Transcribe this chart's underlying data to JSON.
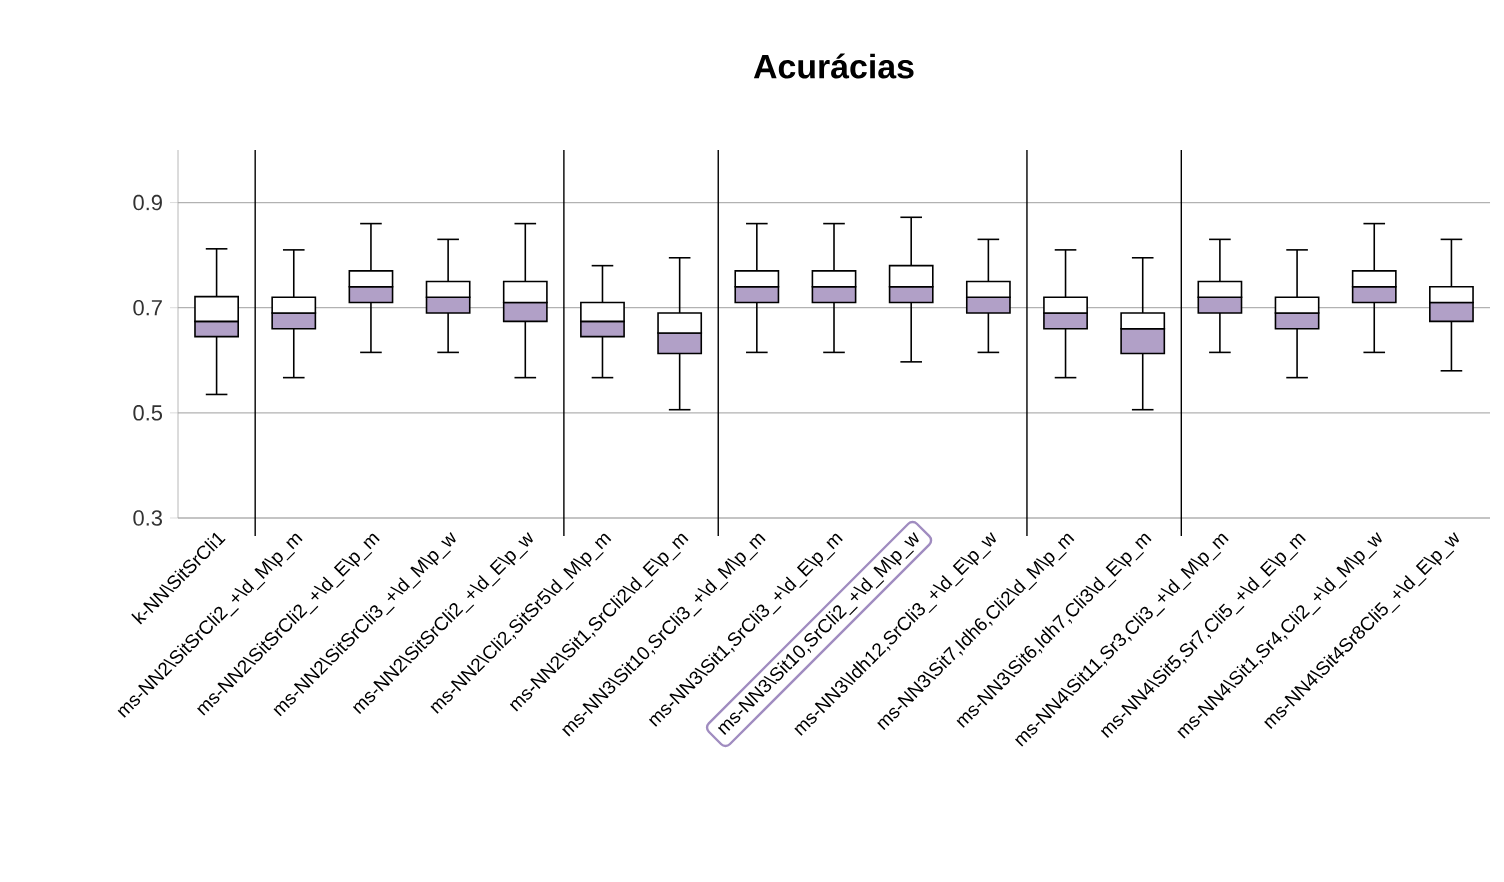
{
  "chart_data": {
    "type": "box",
    "title": "Acurácias",
    "categories": [
      "k-NN\\SitSrCli1",
      "ms-NN2\\SitSrCli2_+\\d_M\\p_m",
      "ms-NN2\\SitSrCli2_+\\d_E\\p_m",
      "ms-NN2\\SitSrCli3_+\\d_M\\p_w",
      "ms-NN2\\SitSrCli2_+\\d_E\\p_w",
      "ms-NN2\\Cli2,SitSr5\\d_M\\p_m",
      "ms-NN2\\Sit1,SrCli2\\d_E\\p_m",
      "ms-NN3\\Sit10,SrCli3_+\\d_M\\p_m",
      "ms-NN3\\Sit1,SrCli3_+\\d_E\\p_m",
      "ms-NN3\\Sit10,SrCli2_+\\d_M\\p_w",
      "ms-NN3\\Idh12,SrCli3_+\\d_E\\p_w",
      "ms-NN3\\Sit7,Idh6,Cli2\\d_M\\p_m",
      "ms-NN3\\Sit6,Idh7,Cli3\\d_E\\p_m",
      "ms-NN4\\Sit11,Sr3,Cli3_+\\d_M\\p_m",
      "ms-NN4\\Sit5,Sr7,Cli5_+\\d_E\\p_m",
      "ms-NN4\\Sit1,Sr4,Cli2_+\\d_M\\p_w",
      "ms-NN4\\Sit4Sr8Cli5_+\\d_E\\p_w"
    ],
    "series": [
      {
        "color": "#b1a0c7",
        "boxes": [
          {
            "low": 0.535,
            "q1": 0.645,
            "median": 0.674,
            "q3": 0.721,
            "high": 0.812
          },
          {
            "low": 0.567,
            "q1": 0.66,
            "median": 0.69,
            "q3": 0.72,
            "high": 0.81
          },
          {
            "low": 0.615,
            "q1": 0.71,
            "median": 0.74,
            "q3": 0.77,
            "high": 0.86
          },
          {
            "low": 0.615,
            "q1": 0.69,
            "median": 0.72,
            "q3": 0.75,
            "high": 0.83
          },
          {
            "low": 0.567,
            "q1": 0.674,
            "median": 0.71,
            "q3": 0.75,
            "high": 0.86
          },
          {
            "low": 0.567,
            "q1": 0.645,
            "median": 0.674,
            "q3": 0.71,
            "high": 0.78
          },
          {
            "low": 0.506,
            "q1": 0.613,
            "median": 0.652,
            "q3": 0.69,
            "high": 0.795
          },
          {
            "low": 0.615,
            "q1": 0.71,
            "median": 0.74,
            "q3": 0.77,
            "high": 0.86
          },
          {
            "low": 0.615,
            "q1": 0.71,
            "median": 0.74,
            "q3": 0.77,
            "high": 0.86
          },
          {
            "low": 0.597,
            "q1": 0.71,
            "median": 0.74,
            "q3": 0.78,
            "high": 0.872
          },
          {
            "low": 0.615,
            "q1": 0.69,
            "median": 0.72,
            "q3": 0.75,
            "high": 0.83
          },
          {
            "low": 0.567,
            "q1": 0.66,
            "median": 0.69,
            "q3": 0.72,
            "high": 0.81
          },
          {
            "low": 0.506,
            "q1": 0.613,
            "median": 0.66,
            "q3": 0.69,
            "high": 0.795
          },
          {
            "low": 0.615,
            "q1": 0.69,
            "median": 0.72,
            "q3": 0.75,
            "high": 0.83
          },
          {
            "low": 0.567,
            "q1": 0.66,
            "median": 0.69,
            "q3": 0.72,
            "high": 0.81
          },
          {
            "low": 0.615,
            "q1": 0.71,
            "median": 0.74,
            "q3": 0.77,
            "high": 0.86
          },
          {
            "low": 0.58,
            "q1": 0.674,
            "median": 0.71,
            "q3": 0.74,
            "high": 0.83
          }
        ]
      }
    ],
    "ylim": [
      0.3,
      1.0
    ],
    "yticks": [
      0.3,
      0.5,
      0.7,
      0.9
    ],
    "grid": "y"
  }
}
